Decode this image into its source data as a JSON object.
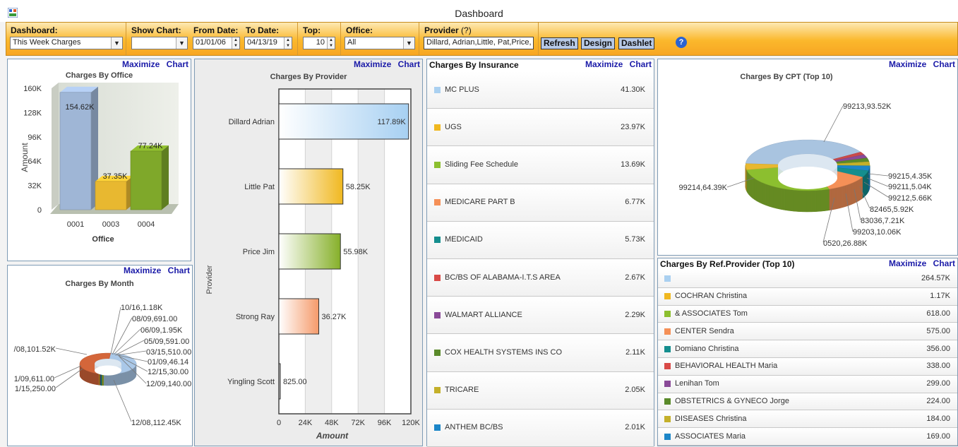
{
  "window": {
    "title": "Dashboard",
    "icon": "app-icon"
  },
  "toolbar": {
    "dashboard": {
      "label": "Dashboard:",
      "value": "This Week Charges"
    },
    "show_chart": {
      "label": "Show Chart:",
      "value": ""
    },
    "from_date": {
      "label": "From Date:",
      "value": "01/01/06"
    },
    "to_date": {
      "label": "To Date:",
      "value": "04/13/19"
    },
    "top": {
      "label": "Top:",
      "value": "10"
    },
    "office": {
      "label": "Office:",
      "value": "All"
    },
    "provider": {
      "label": "Provider",
      "hint": "(?)",
      "value": "Dillard, Adrian,Little, Pat,Price, Ji"
    },
    "buttons": {
      "refresh": "Refresh",
      "design": "Design",
      "dashlet": "Dashlet"
    },
    "help_icon": "help-icon"
  },
  "panels": {
    "maximize": "Maximize",
    "chart": "Chart"
  },
  "chart_data": [
    {
      "id": "office",
      "type": "bar",
      "title": "Charges By Office",
      "xlabel": "Office",
      "ylabel": "Amount",
      "categories": [
        "0001",
        "0003",
        "0004"
      ],
      "values": [
        154620,
        37350,
        77240
      ],
      "data_labels": [
        "154.62K",
        "37.35K",
        "77.24K"
      ],
      "colors": [
        "#9fb6d6",
        "#e8b830",
        "#7fa82a"
      ],
      "ylim": [
        0,
        160000
      ],
      "yticks": [
        "0",
        "32K",
        "64K",
        "96K",
        "128K",
        "160K"
      ],
      "ytick_values": [
        0,
        32000,
        64000,
        96000,
        128000,
        160000
      ]
    },
    {
      "id": "provider",
      "type": "bar",
      "orientation": "horizontal",
      "title": "Charges By Provider",
      "xlabel": "Amount",
      "ylabel": "Provider",
      "categories": [
        "Dillard Adrian",
        "Little Pat",
        "Price Jim",
        "Strong Ray",
        "Yingling Scott"
      ],
      "values": [
        117890,
        58250,
        55980,
        36270,
        825
      ],
      "data_labels": [
        "117.89K",
        "58.25K",
        "55.98K",
        "36.27K",
        "825.00"
      ],
      "colors": [
        "#a7d0f2",
        "#f0b820",
        "#86b02a",
        "#f59a6a",
        "#8a8a8a"
      ],
      "xlim": [
        0,
        120000
      ],
      "xticks": [
        "0",
        "24K",
        "48K",
        "72K",
        "96K",
        "120K"
      ],
      "xtick_values": [
        0,
        24000,
        48000,
        72000,
        96000,
        120000
      ]
    },
    {
      "id": "insurance",
      "type": "table",
      "title": "Charges By Insurance",
      "rows": [
        {
          "label": "MC PLUS",
          "value": "41.30K",
          "color": "#aad0f0"
        },
        {
          "label": "UGS",
          "value": "23.97K",
          "color": "#f0b820"
        },
        {
          "label": "Sliding Fee Schedule",
          "value": "13.69K",
          "color": "#8cbf2f"
        },
        {
          "label": "MEDICARE PART B",
          "value": "6.77K",
          "color": "#f59057"
        },
        {
          "label": "MEDICAID",
          "value": "5.73K",
          "color": "#158e8e"
        },
        {
          "label": "BC/BS OF ALABAMA-I.T.S AREA",
          "value": "2.67K",
          "color": "#d94a47"
        },
        {
          "label": "WALMART ALLIANCE",
          "value": "2.29K",
          "color": "#8a4a98"
        },
        {
          "label": "COX HEALTH SYSTEMS INS CO",
          "value": "2.11K",
          "color": "#5a8a2a"
        },
        {
          "label": "TRICARE",
          "value": "2.05K",
          "color": "#c4b02a"
        },
        {
          "label": "ANTHEM BC/BS",
          "value": "2.01K",
          "color": "#1c86c8"
        }
      ]
    },
    {
      "id": "cpt",
      "type": "pie",
      "title": "Charges By CPT  (Top 10)",
      "slices": [
        {
          "label": "99213,93.52K",
          "value": 93520,
          "color": "#a9c4e0"
        },
        {
          "label": "99215,4.35K",
          "value": 4350,
          "color": "#c94a4a"
        },
        {
          "label": "99211,5.04K",
          "value": 5040,
          "color": "#8a4a98"
        },
        {
          "label": "99212,5.66K",
          "value": 5660,
          "color": "#5a8a2a"
        },
        {
          "label": "82465,5.92K",
          "value": 5920,
          "color": "#c4b02a"
        },
        {
          "label": "83036,7.21K",
          "value": 7210,
          "color": "#1c86c8"
        },
        {
          "label": "99203,10.06K",
          "value": 10060,
          "color": "#158e8e"
        },
        {
          "label": "0520,26.88K",
          "value": 26880,
          "color": "#f59057"
        },
        {
          "label": "99214,64.39K",
          "value": 64390,
          "color": "#8cbf2f"
        },
        {
          "label": "",
          "value": 0,
          "color": "#e8b830"
        }
      ]
    },
    {
      "id": "month",
      "type": "pie",
      "title": "Charges By Month",
      "slices": [
        {
          "label": "10/16,1.18K",
          "value": 1180,
          "color": "#8cbf2f"
        },
        {
          "label": "08/09,691.00",
          "value": 691,
          "color": "#f0b820"
        },
        {
          "label": "06/09,1.95K",
          "value": 1950,
          "color": "#158e8e"
        },
        {
          "label": "05/09,591.00",
          "value": 591,
          "color": "#8a4a98"
        },
        {
          "label": "03/15,510.00",
          "value": 510,
          "color": "#5a8a2a"
        },
        {
          "label": "01/09,46.14",
          "value": 46,
          "color": "#c4b02a"
        },
        {
          "label": "12/15,30.00",
          "value": 30,
          "color": "#1c86c8"
        },
        {
          "label": "12/09,140.00",
          "value": 140,
          "color": "#d94a47"
        },
        {
          "label": "12/08,112.45K",
          "value": 112450,
          "color": "#aac8e8"
        },
        {
          "label": "1/15,250.00",
          "value": 250,
          "color": "#f59057"
        },
        {
          "label": "1/09,611.00",
          "value": 611,
          "color": "#e8b830"
        },
        {
          "label": "/08,101.52K",
          "value": 101520,
          "color": "#d4663a"
        }
      ]
    },
    {
      "id": "refprovider",
      "type": "table",
      "title": "Charges By Ref.Provider (Top 10)",
      "rows": [
        {
          "label": "",
          "value": "264.57K",
          "color": "#aad0f0"
        },
        {
          "label": "COCHRAN Christina",
          "value": "1.17K",
          "color": "#f0b820"
        },
        {
          "label": "& ASSOCIATES Tom",
          "value": "618.00",
          "color": "#8cbf2f"
        },
        {
          "label": "CENTER Sendra",
          "value": "575.00",
          "color": "#f59057"
        },
        {
          "label": "Domiano Christina",
          "value": "356.00",
          "color": "#158e8e"
        },
        {
          "label": "BEHAVIORAL HEALTH Maria",
          "value": "338.00",
          "color": "#d94a47"
        },
        {
          "label": "Lenihan Tom",
          "value": "299.00",
          "color": "#8a4a98"
        },
        {
          "label": "OBSTETRICS & GYNECO Jorge",
          "value": "224.00",
          "color": "#5a8a2a"
        },
        {
          "label": "DISEASES Christina",
          "value": "184.00",
          "color": "#c4b02a"
        },
        {
          "label": "ASSOCIATES Maria",
          "value": "169.00",
          "color": "#1c86c8"
        }
      ]
    }
  ]
}
